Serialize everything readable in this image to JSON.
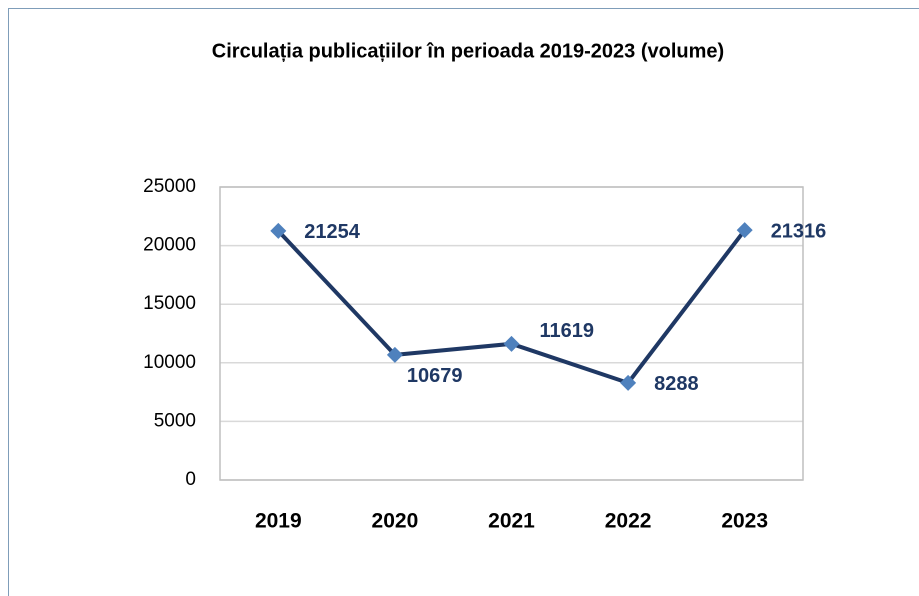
{
  "chart_data": {
    "type": "line",
    "title": "Circulația publicațiilor în perioada 2019-2023 (volume)",
    "categories": [
      "2019",
      "2020",
      "2021",
      "2022",
      "2023"
    ],
    "series": [
      {
        "name": "Circulația",
        "color": "#1f3864",
        "marker_color": "#4f81bd",
        "values": [
          21254,
          10679,
          11619,
          8288,
          21316
        ]
      }
    ],
    "ylim": [
      0,
      25000
    ],
    "yticks": [
      0,
      5000,
      10000,
      15000,
      20000,
      25000
    ],
    "grid": true
  }
}
